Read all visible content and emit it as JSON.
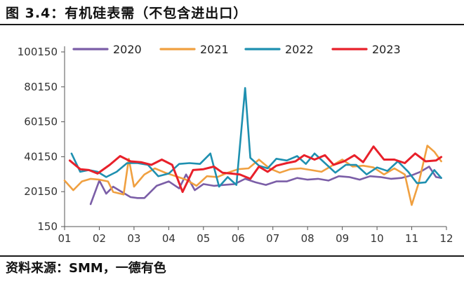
{
  "title": "图 3.4：有机硅表需（不包含进出口）",
  "source": "资料来源：SMM，一德有色",
  "colors": {
    "2020": "#7b5ea7",
    "2021": "#f0a040",
    "2022": "#1e90b0",
    "2023": "#e8202a"
  },
  "chart_data": {
    "type": "line",
    "title": "有机硅表需（不包含进出口）",
    "xlabel": "",
    "ylabel": "",
    "x_tick_labels": [
      "01",
      "02",
      "03",
      "04",
      "05",
      "06",
      "07",
      "08",
      "09",
      "10",
      "11",
      "12"
    ],
    "x_range": [
      1,
      12
    ],
    "y_tick_labels": [
      "150",
      "20150",
      "40150",
      "60150",
      "80150",
      "100150"
    ],
    "ylim": [
      150,
      100150
    ],
    "legend_position": "top",
    "series": [
      {
        "name": "2020",
        "x": [
          1.75,
          2.0,
          2.2,
          2.4,
          2.65,
          2.9,
          3.1,
          3.3,
          3.65,
          4.0,
          4.3,
          4.5,
          4.75,
          5.0,
          5.3,
          5.6,
          5.9,
          6.2,
          6.5,
          6.8,
          7.1,
          7.4,
          7.7,
          8.0,
          8.3,
          8.6,
          8.9,
          9.2,
          9.5,
          9.8,
          10.1,
          10.4,
          10.7,
          11.0,
          11.25,
          11.5,
          11.7,
          11.85
        ],
        "values": [
          13000,
          26500,
          19000,
          23000,
          20000,
          17000,
          16500,
          16500,
          23500,
          26000,
          22000,
          30000,
          21000,
          24500,
          23500,
          24000,
          24500,
          27500,
          25500,
          24000,
          26000,
          26000,
          28000,
          27000,
          27500,
          26500,
          29000,
          28500,
          27000,
          29000,
          28500,
          27500,
          28000,
          29500,
          31500,
          34500,
          28500,
          28000
        ]
      },
      {
        "name": "2021",
        "x": [
          1.0,
          1.25,
          1.5,
          1.75,
          2.0,
          2.25,
          2.4,
          2.7,
          2.85,
          3.0,
          3.3,
          3.6,
          3.9,
          4.2,
          4.5,
          4.8,
          5.1,
          5.4,
          5.7,
          6.0,
          6.3,
          6.6,
          6.9,
          7.2,
          7.5,
          7.8,
          8.1,
          8.4,
          8.7,
          9.0,
          9.3,
          9.6,
          9.9,
          10.2,
          10.5,
          10.8,
          11.0,
          11.2,
          11.45,
          11.65,
          11.85
        ],
        "values": [
          26500,
          21000,
          26000,
          27500,
          27000,
          26000,
          20000,
          18500,
          39000,
          23000,
          30000,
          33500,
          31000,
          29000,
          27000,
          23500,
          29000,
          28500,
          31000,
          33000,
          33500,
          38500,
          33500,
          31000,
          33000,
          33500,
          32500,
          31500,
          35000,
          38500,
          34500,
          35000,
          34000,
          30000,
          33500,
          30000,
          12500,
          25000,
          46500,
          43000,
          37500
        ]
      },
      {
        "name": "2022",
        "x": [
          1.2,
          1.45,
          1.7,
          1.95,
          2.2,
          2.5,
          2.8,
          3.1,
          3.4,
          3.7,
          4.0,
          4.3,
          4.6,
          4.9,
          5.2,
          5.45,
          5.7,
          5.95,
          6.2,
          6.35,
          6.6,
          6.85,
          7.1,
          7.4,
          7.7,
          7.95,
          8.2,
          8.5,
          8.8,
          9.1,
          9.4,
          9.7,
          10.0,
          10.3,
          10.6,
          10.9,
          11.15,
          11.4,
          11.65,
          11.85
        ],
        "values": [
          42000,
          31500,
          32500,
          31500,
          28500,
          31500,
          36500,
          36500,
          35500,
          29000,
          30500,
          36000,
          36500,
          36000,
          42000,
          23000,
          28500,
          24000,
          79500,
          39500,
          35000,
          33500,
          39000,
          38000,
          40500,
          36000,
          42000,
          36500,
          31000,
          35500,
          35500,
          30000,
          34000,
          32000,
          37500,
          31500,
          25000,
          25500,
          32500,
          28000
        ]
      },
      {
        "name": "2023",
        "x": [
          1.15,
          1.45,
          1.7,
          1.95,
          2.3,
          2.6,
          2.9,
          3.2,
          3.5,
          3.8,
          4.1,
          4.4,
          4.7,
          5.0,
          5.3,
          5.55,
          5.8,
          6.05,
          6.35,
          6.6,
          6.85,
          7.1,
          7.4,
          7.65,
          7.9,
          8.2,
          8.5,
          8.75,
          9.05,
          9.35,
          9.6,
          9.9,
          10.2,
          10.5,
          10.8,
          11.1,
          11.4,
          11.7,
          11.85
        ],
        "values": [
          38000,
          33000,
          32500,
          30500,
          35500,
          40500,
          37500,
          37000,
          35500,
          38500,
          35500,
          20000,
          32500,
          33000,
          34500,
          31000,
          30500,
          30000,
          27500,
          34500,
          31500,
          35000,
          36500,
          37500,
          41000,
          38500,
          41000,
          35500,
          37500,
          41000,
          37000,
          46000,
          38500,
          38500,
          36500,
          42000,
          37500,
          38000,
          40000
        ]
      }
    ]
  }
}
